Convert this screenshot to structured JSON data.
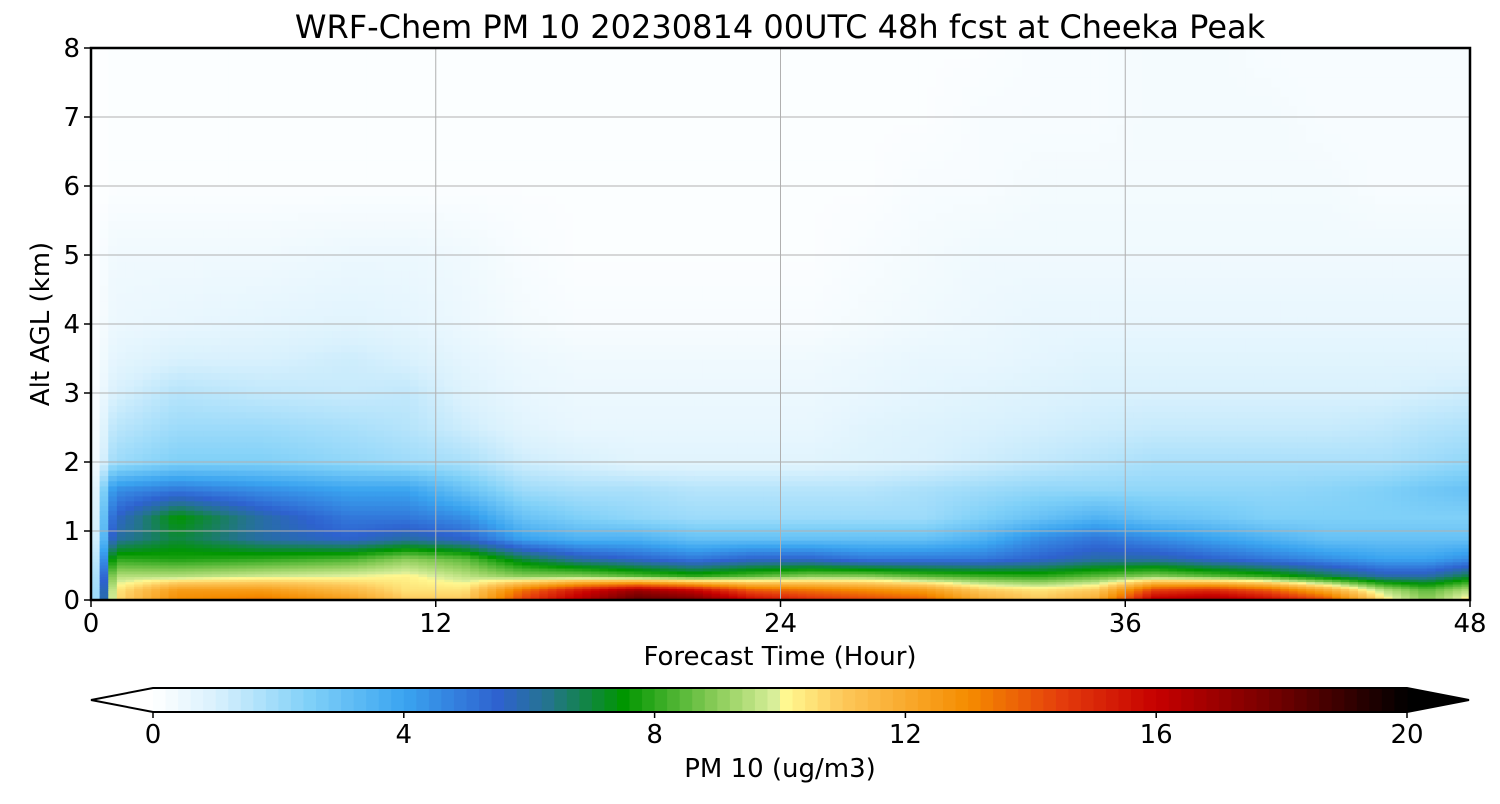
{
  "chart_data": {
    "type": "heatmap",
    "title": "WRF-Chem PM 10  20230814 00UTC 48h fcst at Cheeka Peak",
    "xlabel": "Forecast Time (Hour)",
    "ylabel": "Alt AGL (km)",
    "xlim": [
      0,
      48
    ],
    "ylim": [
      0,
      8
    ],
    "x_ticks": [
      0,
      12,
      24,
      36,
      48
    ],
    "y_ticks": [
      0,
      1,
      2,
      3,
      4,
      5,
      6,
      7,
      8
    ],
    "grid": true,
    "z": {
      "x": [
        0,
        0.8,
        3,
        6,
        9,
        11,
        13,
        15,
        17,
        19,
        21,
        23,
        25,
        27,
        29,
        31,
        33,
        35,
        37,
        39,
        41,
        43,
        45,
        46.5,
        48
      ],
      "y": [
        0,
        0.15,
        0.35,
        0.6,
        0.9,
        1.2,
        1.6,
        2.0,
        2.5,
        3.0,
        3.5,
        4.0,
        5.0,
        6.0,
        7.0,
        8.0
      ],
      "values": [
        [
          0.0,
          10.5,
          13.0,
          13.5,
          12.5,
          11.0,
          11.0,
          14.5,
          16.5,
          18.5,
          18.0,
          16.0,
          15.0,
          14.5,
          14.0,
          12.0,
          11.0,
          12.0,
          16.5,
          17.0,
          16.0,
          14.5,
          10.5,
          9.0,
          10.5
        ],
        [
          0.0,
          10.3,
          12.5,
          12.5,
          11.5,
          10.5,
          10.5,
          13.5,
          15.5,
          17.0,
          16.0,
          14.0,
          13.5,
          13.0,
          12.5,
          11.0,
          10.5,
          11.0,
          14.5,
          15.0,
          14.0,
          12.0,
          9.5,
          8.5,
          9.5
        ],
        [
          0.0,
          9.5,
          9.5,
          9.8,
          10.0,
          10.2,
          9.6,
          9.0,
          9.0,
          8.5,
          8.0,
          8.5,
          9.0,
          9.0,
          8.5,
          8.2,
          8.0,
          8.5,
          9.0,
          8.5,
          8.0,
          7.0,
          6.0,
          6.0,
          7.0
        ],
        [
          0.0,
          8.0,
          7.8,
          8.0,
          8.3,
          9.0,
          8.5,
          7.0,
          6.0,
          5.5,
          5.0,
          5.5,
          5.5,
          5.0,
          5.0,
          5.0,
          5.5,
          6.0,
          6.0,
          5.5,
          5.0,
          4.5,
          4.0,
          4.0,
          4.5
        ],
        [
          0.0,
          6.0,
          7.0,
          6.0,
          5.5,
          6.0,
          5.5,
          4.0,
          3.5,
          3.5,
          3.0,
          3.0,
          3.0,
          3.0,
          3.0,
          3.5,
          4.5,
          5.0,
          4.5,
          4.0,
          3.5,
          3.0,
          3.0,
          3.0,
          3.0
        ],
        [
          0.0,
          5.5,
          7.5,
          6.0,
          5.0,
          5.0,
          4.5,
          3.0,
          2.5,
          2.2,
          2.0,
          2.0,
          2.0,
          2.0,
          2.0,
          2.5,
          3.0,
          3.5,
          3.0,
          2.8,
          2.5,
          2.5,
          2.5,
          2.5,
          2.5
        ],
        [
          0.0,
          4.5,
          5.0,
          4.5,
          4.0,
          4.0,
          3.0,
          2.0,
          1.8,
          1.8,
          1.6,
          1.6,
          1.6,
          1.6,
          1.8,
          2.0,
          2.2,
          2.2,
          2.2,
          2.2,
          2.2,
          2.3,
          2.5,
          2.8,
          3.0
        ],
        [
          0.0,
          2.0,
          2.5,
          2.5,
          2.2,
          2.0,
          1.8,
          1.2,
          1.0,
          0.8,
          0.8,
          0.8,
          0.8,
          0.9,
          1.0,
          1.2,
          1.4,
          1.6,
          1.8,
          1.8,
          1.8,
          1.8,
          1.8,
          2.0,
          2.2
        ],
        [
          0.0,
          1.5,
          2.0,
          2.0,
          1.8,
          1.6,
          1.2,
          0.8,
          0.6,
          0.6,
          0.6,
          0.6,
          0.6,
          0.8,
          0.9,
          1.0,
          1.1,
          1.2,
          1.3,
          1.3,
          1.3,
          1.3,
          1.4,
          1.6,
          1.7
        ],
        [
          0.0,
          1.0,
          1.6,
          1.4,
          1.3,
          1.4,
          0.9,
          0.6,
          0.5,
          0.5,
          0.5,
          0.5,
          0.5,
          0.6,
          0.7,
          0.8,
          0.9,
          1.0,
          1.0,
          1.0,
          1.0,
          1.0,
          1.0,
          1.1,
          1.2
        ],
        [
          0.0,
          0.7,
          1.0,
          1.0,
          1.2,
          1.0,
          0.7,
          0.5,
          0.4,
          0.4,
          0.4,
          0.4,
          0.4,
          0.5,
          0.6,
          0.6,
          0.7,
          0.8,
          0.8,
          0.8,
          0.8,
          0.8,
          0.8,
          0.8,
          0.8
        ],
        [
          0.0,
          0.5,
          0.6,
          0.7,
          0.8,
          0.7,
          0.5,
          0.3,
          0.2,
          0.2,
          0.2,
          0.2,
          0.2,
          0.3,
          0.4,
          0.5,
          0.6,
          0.6,
          0.6,
          0.6,
          0.6,
          0.6,
          0.6,
          0.6,
          0.6
        ],
        [
          0.0,
          0.4,
          0.4,
          0.4,
          0.5,
          0.5,
          0.4,
          0.2,
          0.1,
          0.1,
          0.1,
          0.1,
          0.1,
          0.2,
          0.3,
          0.4,
          0.4,
          0.4,
          0.4,
          0.4,
          0.4,
          0.4,
          0.4,
          0.4,
          0.4
        ],
        [
          0.0,
          0.1,
          0.1,
          0.1,
          0.1,
          0.1,
          0.1,
          0.1,
          0.1,
          0.1,
          0.1,
          0.1,
          0.1,
          0.1,
          0.2,
          0.2,
          0.3,
          0.3,
          0.3,
          0.3,
          0.3,
          0.3,
          0.2,
          0.2,
          0.2
        ],
        [
          0.0,
          0.1,
          0.1,
          0.1,
          0.1,
          0.1,
          0.1,
          0.1,
          0.1,
          0.1,
          0.1,
          0.1,
          0.1,
          0.1,
          0.1,
          0.2,
          0.2,
          0.2,
          0.3,
          0.3,
          0.3,
          0.2,
          0.2,
          0.2,
          0.2
        ],
        [
          0.0,
          0.1,
          0.1,
          0.1,
          0.1,
          0.1,
          0.1,
          0.1,
          0.1,
          0.1,
          0.1,
          0.1,
          0.1,
          0.1,
          0.1,
          0.1,
          0.2,
          0.2,
          0.3,
          0.3,
          0.2,
          0.2,
          0.2,
          0.2,
          0.2
        ]
      ]
    },
    "colorbar": {
      "label": "PM 10  (ug/m3)",
      "range": [
        0,
        20
      ],
      "ticks": [
        0,
        4,
        8,
        12,
        16,
        20
      ],
      "extend": "both",
      "placement": "bottom",
      "color_stops": [
        {
          "v": 0,
          "c": "#ffffff"
        },
        {
          "v": 1,
          "c": "#d9f1fd"
        },
        {
          "v": 2.5,
          "c": "#7fd0f8"
        },
        {
          "v": 4,
          "c": "#3aa4f0"
        },
        {
          "v": 5.5,
          "c": "#2e62cf"
        },
        {
          "v": 6.3,
          "c": "#24748e"
        },
        {
          "v": 7.5,
          "c": "#009600"
        },
        {
          "v": 9,
          "c": "#8ccd5a"
        },
        {
          "v": 9.9,
          "c": "#d8ee99"
        },
        {
          "v": 10.1,
          "c": "#fff890"
        },
        {
          "v": 11,
          "c": "#fdc85a"
        },
        {
          "v": 13,
          "c": "#f58c00"
        },
        {
          "v": 14.5,
          "c": "#e43c0c"
        },
        {
          "v": 16,
          "c": "#c60000"
        },
        {
          "v": 18,
          "c": "#6e0000"
        },
        {
          "v": 20,
          "c": "#000000"
        }
      ]
    }
  }
}
